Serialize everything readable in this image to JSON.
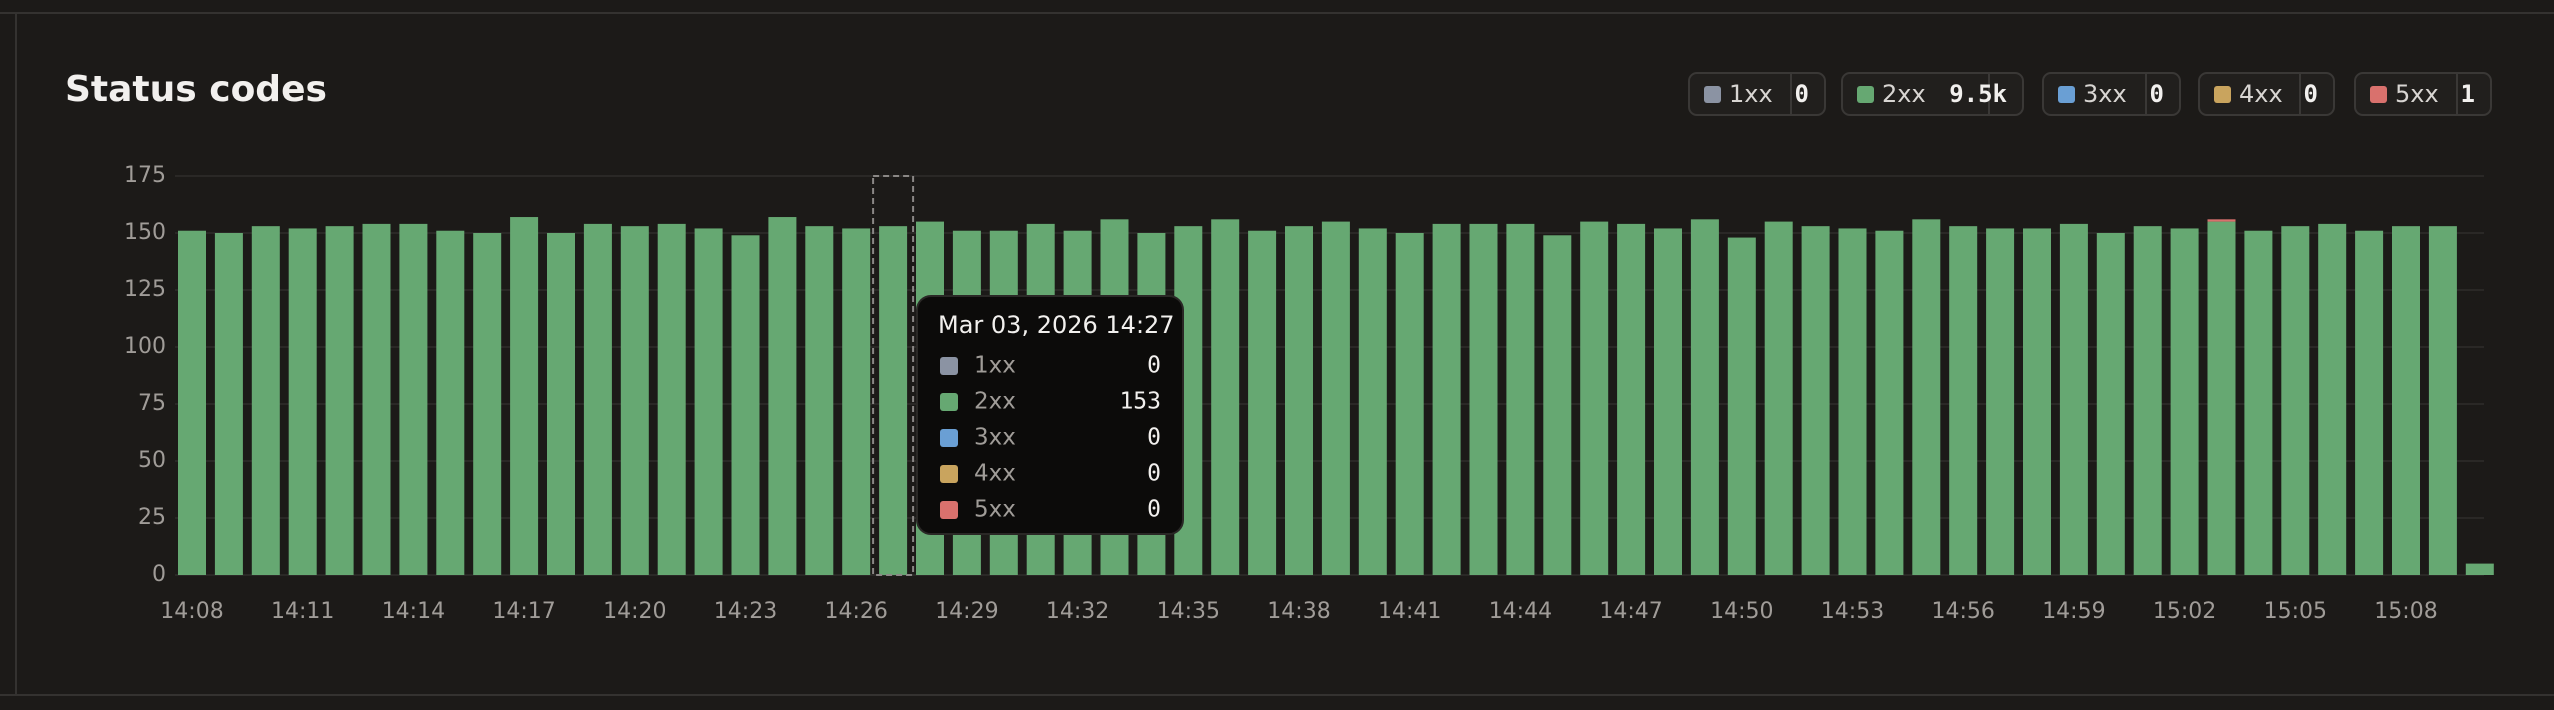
{
  "chart_data": {
    "type": "bar",
    "stacked": true,
    "title": "Status codes",
    "categories": [
      "14:08",
      null,
      null,
      "14:11",
      null,
      null,
      "14:14",
      null,
      null,
      "14:17",
      null,
      null,
      "14:20",
      null,
      null,
      "14:23",
      null,
      null,
      "14:26",
      null,
      null,
      "14:29",
      null,
      null,
      "14:32",
      null,
      null,
      "14:35",
      null,
      null,
      "14:38",
      null,
      null,
      "14:41",
      null,
      null,
      "14:44",
      null,
      null,
      "14:47",
      null,
      null,
      "14:50",
      null,
      null,
      "14:53",
      null,
      null,
      "14:56",
      null,
      null,
      "14:59",
      null,
      null,
      "15:02",
      null,
      null,
      "15:05",
      null,
      null,
      "15:08",
      null,
      null
    ],
    "series": [
      {
        "name": "1xx",
        "color": "#8b93a3",
        "total": 0,
        "values": [
          0,
          0,
          0,
          0,
          0,
          0,
          0,
          0,
          0,
          0,
          0,
          0,
          0,
          0,
          0,
          0,
          0,
          0,
          0,
          0,
          0,
          0,
          0,
          0,
          0,
          0,
          0,
          0,
          0,
          0,
          0,
          0,
          0,
          0,
          0,
          0,
          0,
          0,
          0,
          0,
          0,
          0,
          0,
          0,
          0,
          0,
          0,
          0,
          0,
          0,
          0,
          0,
          0,
          0,
          0,
          0,
          0,
          0,
          0,
          0,
          0,
          0,
          0
        ]
      },
      {
        "name": "2xx",
        "color": "#66a872",
        "total": 9500,
        "total_label": "9.5k",
        "values": [
          151,
          150,
          153,
          152,
          153,
          154,
          154,
          151,
          150,
          157,
          150,
          154,
          153,
          154,
          152,
          149,
          157,
          153,
          152,
          153,
          155,
          151,
          151,
          154,
          151,
          156,
          150,
          153,
          156,
          151,
          153,
          155,
          152,
          150,
          154,
          154,
          154,
          149,
          155,
          154,
          152,
          156,
          148,
          155,
          153,
          152,
          151,
          156,
          153,
          152,
          152,
          154,
          150,
          153,
          152,
          155,
          151,
          153,
          154,
          151,
          153,
          153,
          5
        ]
      },
      {
        "name": "3xx",
        "color": "#6a9fd4",
        "total": 0,
        "values": [
          0,
          0,
          0,
          0,
          0,
          0,
          0,
          0,
          0,
          0,
          0,
          0,
          0,
          0,
          0,
          0,
          0,
          0,
          0,
          0,
          0,
          0,
          0,
          0,
          0,
          0,
          0,
          0,
          0,
          0,
          0,
          0,
          0,
          0,
          0,
          0,
          0,
          0,
          0,
          0,
          0,
          0,
          0,
          0,
          0,
          0,
          0,
          0,
          0,
          0,
          0,
          0,
          0,
          0,
          0,
          0,
          0,
          0,
          0,
          0,
          0,
          0,
          0
        ]
      },
      {
        "name": "4xx",
        "color": "#c9a45e",
        "total": 0,
        "values": [
          0,
          0,
          0,
          0,
          0,
          0,
          0,
          0,
          0,
          0,
          0,
          0,
          0,
          0,
          0,
          0,
          0,
          0,
          0,
          0,
          0,
          0,
          0,
          0,
          0,
          0,
          0,
          0,
          0,
          0,
          0,
          0,
          0,
          0,
          0,
          0,
          0,
          0,
          0,
          0,
          0,
          0,
          0,
          0,
          0,
          0,
          0,
          0,
          0,
          0,
          0,
          0,
          0,
          0,
          0,
          0,
          0,
          0,
          0,
          0,
          0,
          0,
          0
        ]
      },
      {
        "name": "5xx",
        "color": "#d9716d",
        "total": 1,
        "values": [
          0,
          0,
          0,
          0,
          0,
          0,
          0,
          0,
          0,
          0,
          0,
          0,
          0,
          0,
          0,
          0,
          0,
          0,
          0,
          0,
          0,
          0,
          0,
          0,
          0,
          0,
          0,
          0,
          0,
          0,
          0,
          0,
          0,
          0,
          0,
          0,
          0,
          0,
          0,
          0,
          0,
          0,
          0,
          0,
          0,
          0,
          0,
          0,
          0,
          0,
          0,
          0,
          0,
          0,
          0,
          1,
          0,
          0,
          0,
          0,
          0,
          0,
          0
        ]
      }
    ],
    "ylim": [
      0,
      175
    ],
    "yticks": [
      0,
      25,
      50,
      75,
      100,
      125,
      150,
      175
    ],
    "grid": true,
    "tooltip": {
      "title": "Mar 03, 2026 14:27"
    }
  }
}
